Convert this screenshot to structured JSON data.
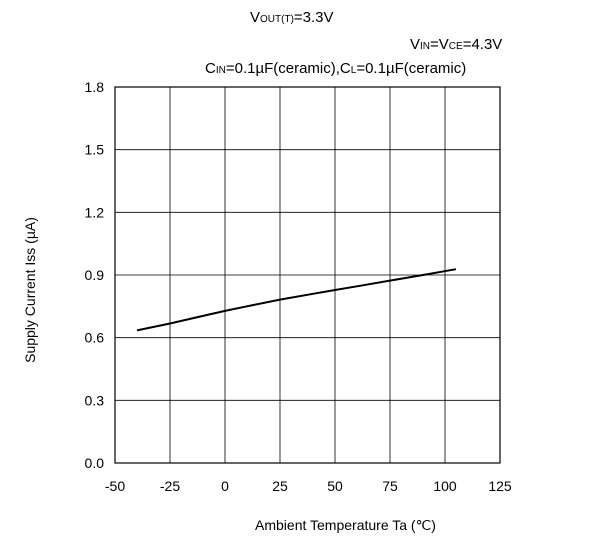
{
  "conditions": {
    "vout_main": "V",
    "vout_sub": "OUT(T)",
    "vout_rest": "=3.3V",
    "vin_main": "V",
    "vin_sub": "IN",
    "vin_mid": "=V",
    "vce_sub": "CE",
    "vin_rest": "=4.3V",
    "cin_main": "C",
    "cin_sub": "IN",
    "cin_rest": "=0.1µF(ceramic),C",
    "cl_sub": "L",
    "cl_rest": "=0.1µF(ceramic)"
  },
  "chart_data": {
    "type": "line",
    "xlabel": "Ambient Temperature  Ta (℃)",
    "ylabel": "Supply Current  Iss  (µA)",
    "xlim": [
      -50,
      125
    ],
    "ylim": [
      0.0,
      1.8
    ],
    "x_ticks": [
      -50,
      -25,
      0,
      25,
      50,
      75,
      100,
      125
    ],
    "x_tick_labels": [
      "-50",
      "-25",
      "0",
      "25",
      "50",
      "75",
      "100",
      "125"
    ],
    "y_ticks": [
      0.0,
      0.3,
      0.6,
      0.9,
      1.2,
      1.5,
      1.8
    ],
    "y_tick_labels": [
      "0.0",
      "0.3",
      "0.6",
      "0.9",
      "1.2",
      "1.5",
      "1.8"
    ],
    "grid": true,
    "series": [
      {
        "x": [
          -40,
          -25,
          -10,
          0,
          10,
          25,
          40,
          50,
          60,
          75,
          90,
          105
        ],
        "y": [
          0.635,
          0.668,
          0.704,
          0.728,
          0.75,
          0.782,
          0.81,
          0.828,
          0.846,
          0.873,
          0.9,
          0.928
        ],
        "color": "#000000"
      }
    ]
  }
}
